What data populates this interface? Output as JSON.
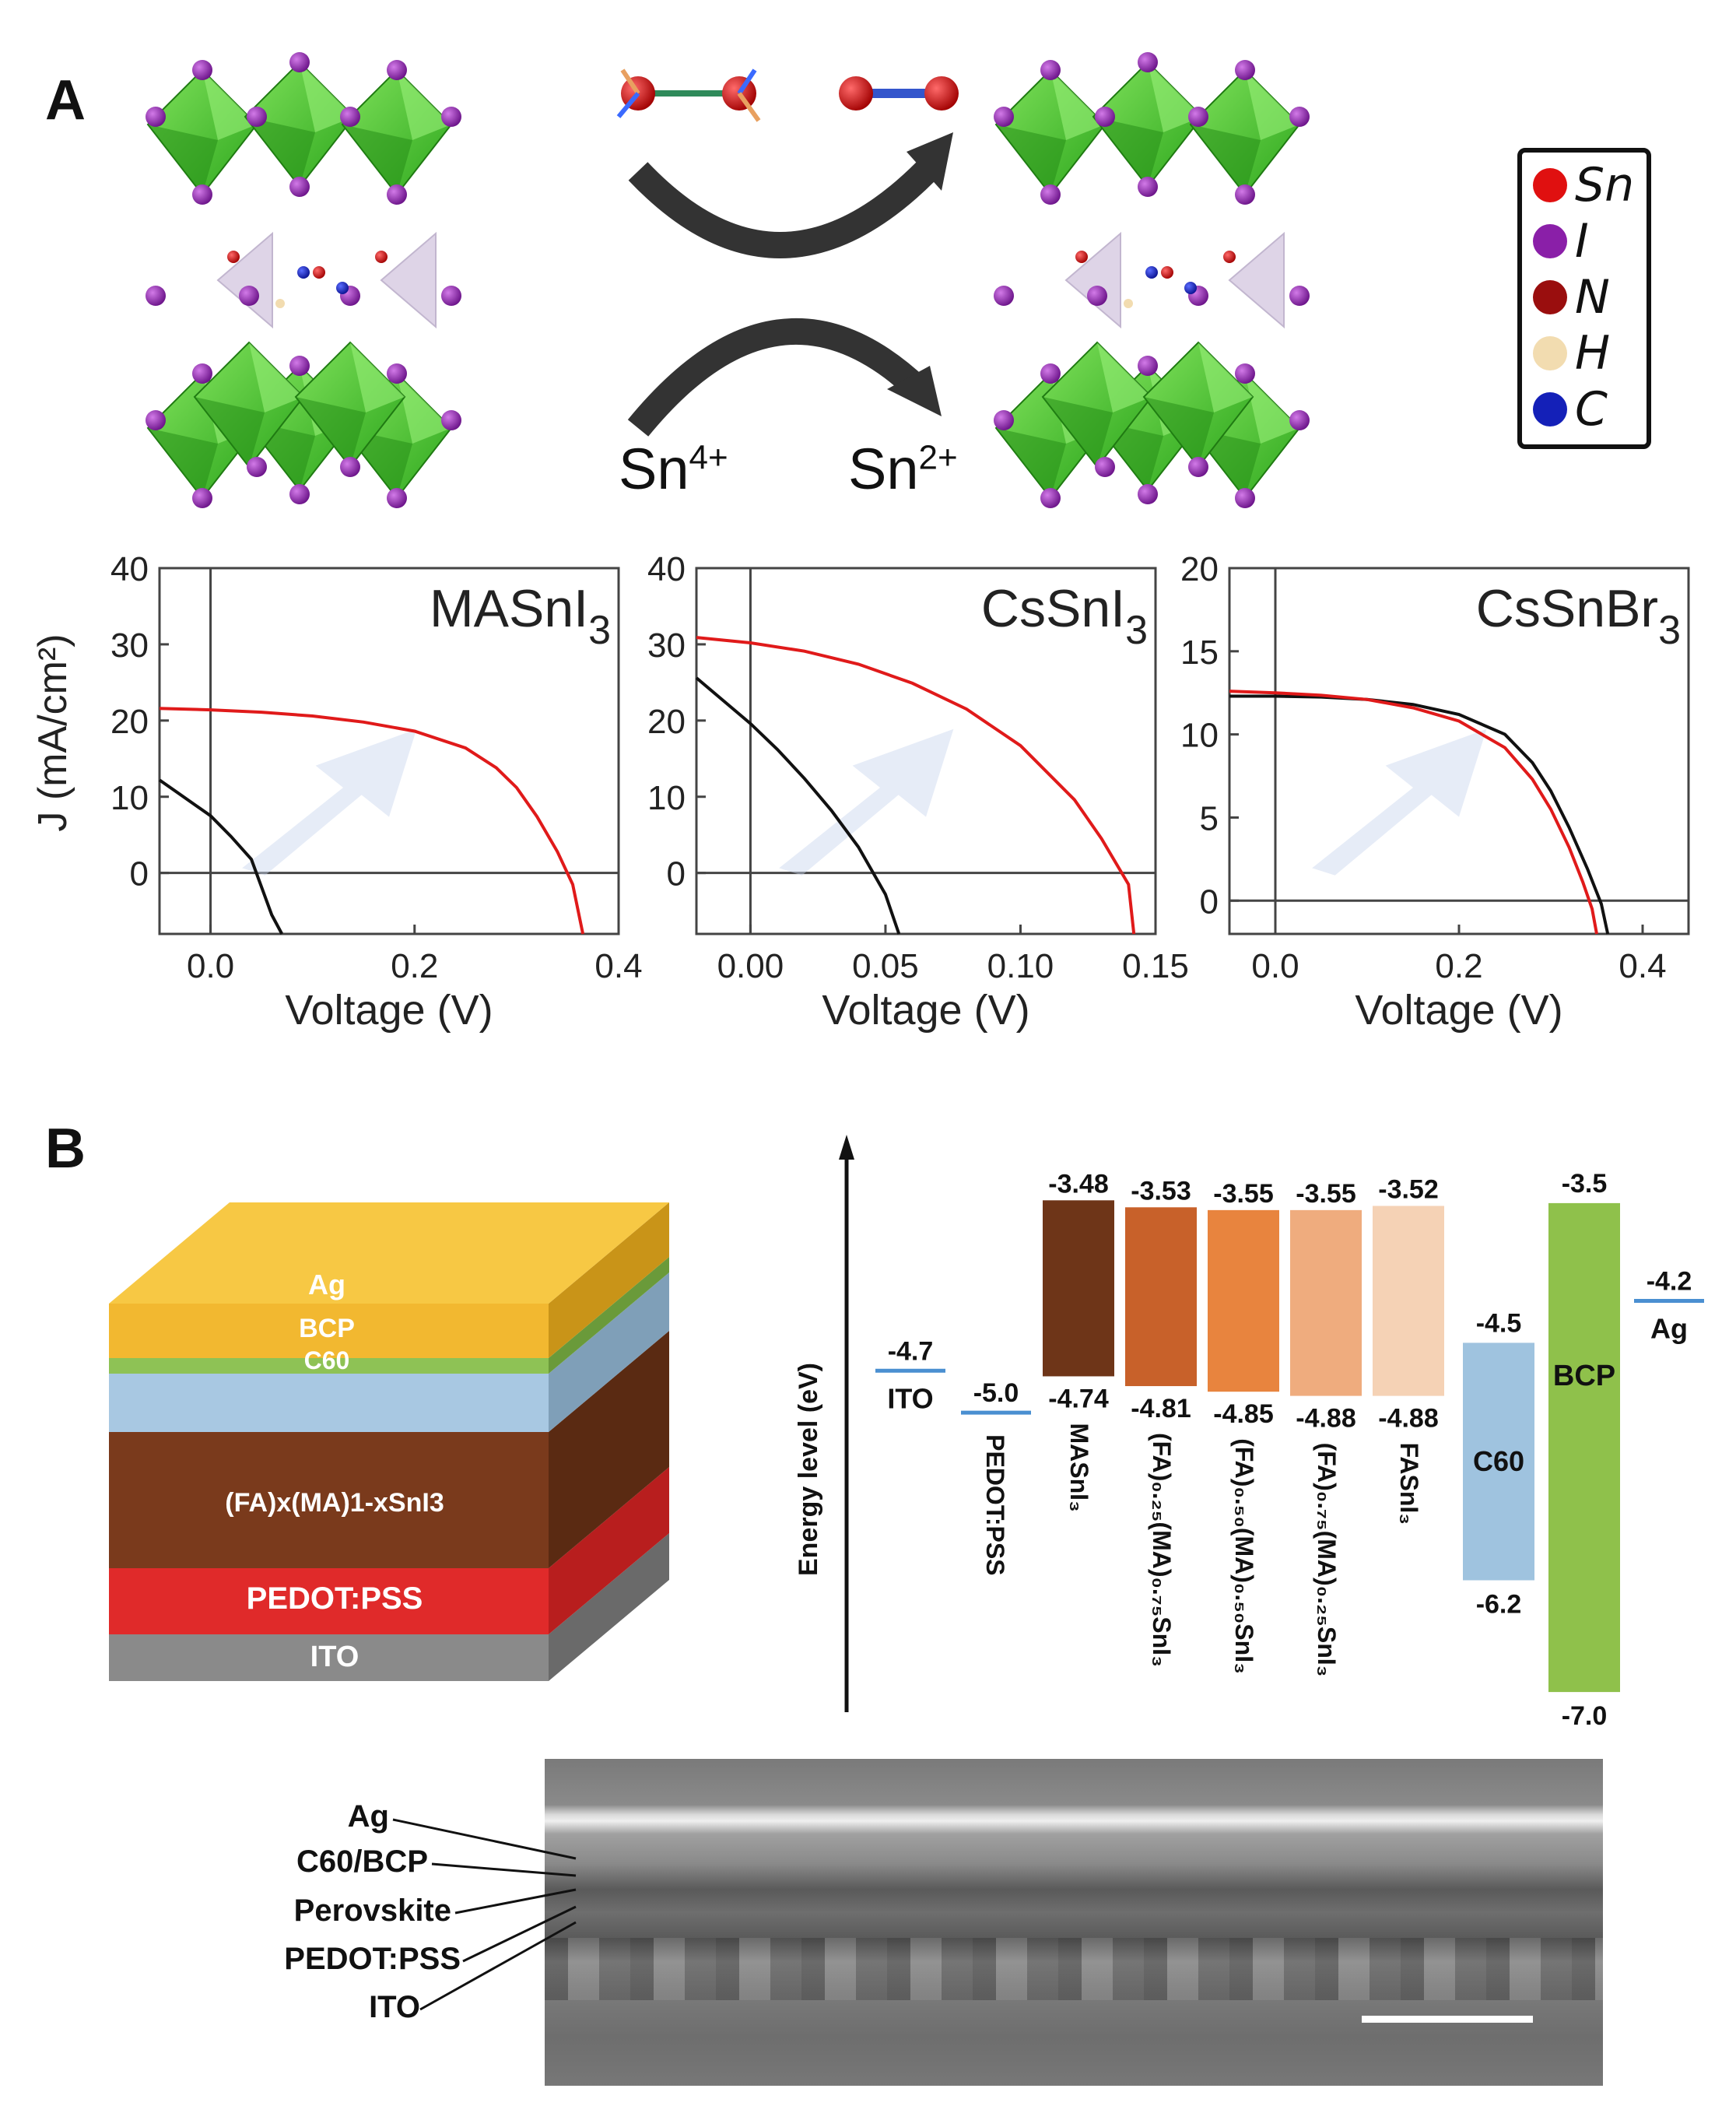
{
  "panel_a": {
    "letter": "A",
    "legend": [
      {
        "symbol": "Sn",
        "color": "#e01010"
      },
      {
        "symbol": "I",
        "color": "#8a1fa8"
      },
      {
        "symbol": "N",
        "color": "#9a0e0e"
      },
      {
        "symbol": "H",
        "color": "#f2dcb0"
      },
      {
        "symbol": "C",
        "color": "#1420b8"
      }
    ],
    "reaction": {
      "left_ion": "Sn",
      "left_charge": "4+",
      "right_ion": "Sn",
      "right_charge": "2+"
    }
  },
  "chart_data": [
    {
      "type": "line",
      "title_main": "MASnI",
      "title_sub": "3",
      "ylabel": "J (mA/cm²)",
      "xlabel": "Voltage (V)",
      "xlim": [
        -0.05,
        0.4
      ],
      "ylim": [
        -8,
        40
      ],
      "xticks": [
        0.0,
        0.2,
        0.4
      ],
      "xtick_labels": [
        "0.0",
        "0.2",
        "0.4"
      ],
      "yticks": [
        0,
        10,
        20,
        30,
        40
      ],
      "ytick_labels": [
        "0",
        "10",
        "20",
        "30",
        "40"
      ],
      "grid": false,
      "series": [
        {
          "color": "#111111",
          "points": [
            [
              -0.05,
              12.2
            ],
            [
              0.0,
              7.5
            ],
            [
              0.02,
              4.8
            ],
            [
              0.04,
              1.8
            ],
            [
              0.06,
              -5.5
            ],
            [
              0.07,
              -8.0
            ]
          ]
        },
        {
          "color": "#e01a1a",
          "points": [
            [
              -0.05,
              21.6
            ],
            [
              0.0,
              21.4
            ],
            [
              0.05,
              21.1
            ],
            [
              0.1,
              20.6
            ],
            [
              0.15,
              19.8
            ],
            [
              0.2,
              18.6
            ],
            [
              0.25,
              16.4
            ],
            [
              0.28,
              13.8
            ],
            [
              0.3,
              11.2
            ],
            [
              0.32,
              7.4
            ],
            [
              0.34,
              2.8
            ],
            [
              0.355,
              -1.5
            ],
            [
              0.365,
              -8.0
            ]
          ]
        }
      ]
    },
    {
      "type": "line",
      "title_main": "CsSnI",
      "title_sub": "3",
      "ylabel": "",
      "xlabel": "Voltage (V)",
      "xlim": [
        -0.02,
        0.15
      ],
      "ylim": [
        -8,
        40
      ],
      "xticks": [
        0.0,
        0.05,
        0.1,
        0.15
      ],
      "xtick_labels": [
        "0.00",
        "0.05",
        "0.10",
        "0.15"
      ],
      "yticks": [
        0,
        10,
        20,
        30,
        40
      ],
      "ytick_labels": [
        "0",
        "10",
        "20",
        "30",
        "40"
      ],
      "grid": false,
      "series": [
        {
          "color": "#111111",
          "points": [
            [
              -0.02,
              25.6
            ],
            [
              -0.01,
              22.6
            ],
            [
              0.0,
              19.6
            ],
            [
              0.01,
              16.2
            ],
            [
              0.02,
              12.4
            ],
            [
              0.03,
              8.2
            ],
            [
              0.04,
              3.4
            ],
            [
              0.05,
              -2.8
            ],
            [
              0.055,
              -8.0
            ]
          ]
        },
        {
          "color": "#e01a1a",
          "points": [
            [
              -0.02,
              30.9
            ],
            [
              0.0,
              30.2
            ],
            [
              0.02,
              29.1
            ],
            [
              0.04,
              27.4
            ],
            [
              0.06,
              24.9
            ],
            [
              0.08,
              21.5
            ],
            [
              0.1,
              16.7
            ],
            [
              0.12,
              9.6
            ],
            [
              0.13,
              4.5
            ],
            [
              0.14,
              -1.5
            ],
            [
              0.142,
              -8.0
            ]
          ]
        }
      ]
    },
    {
      "type": "line",
      "title_main": "CsSnBr",
      "title_sub": "3",
      "ylabel": "",
      "xlabel": "Voltage (V)",
      "xlim": [
        -0.05,
        0.45
      ],
      "ylim": [
        -2,
        20
      ],
      "xticks": [
        0.0,
        0.2,
        0.4
      ],
      "xtick_labels": [
        "0.0",
        "0.2",
        "0.4"
      ],
      "yticks": [
        0,
        5,
        10,
        15,
        20
      ],
      "ytick_labels": [
        "0",
        "5",
        "10",
        "15",
        "20"
      ],
      "grid": false,
      "series": [
        {
          "color": "#111111",
          "points": [
            [
              -0.05,
              12.3
            ],
            [
              0.0,
              12.3
            ],
            [
              0.05,
              12.25
            ],
            [
              0.1,
              12.1
            ],
            [
              0.15,
              11.8
            ],
            [
              0.2,
              11.2
            ],
            [
              0.25,
              10.0
            ],
            [
              0.28,
              8.3
            ],
            [
              0.3,
              6.6
            ],
            [
              0.32,
              4.4
            ],
            [
              0.34,
              1.9
            ],
            [
              0.355,
              -0.2
            ],
            [
              0.362,
              -2.0
            ]
          ]
        },
        {
          "color": "#e01a1a",
          "points": [
            [
              -0.05,
              12.6
            ],
            [
              0.0,
              12.5
            ],
            [
              0.05,
              12.35
            ],
            [
              0.1,
              12.1
            ],
            [
              0.15,
              11.6
            ],
            [
              0.2,
              10.8
            ],
            [
              0.25,
              9.2
            ],
            [
              0.28,
              7.3
            ],
            [
              0.3,
              5.5
            ],
            [
              0.32,
              3.2
            ],
            [
              0.335,
              1.1
            ],
            [
              0.345,
              -0.5
            ],
            [
              0.35,
              -2.0
            ]
          ]
        }
      ]
    }
  ],
  "panel_b": {
    "letter": "B",
    "stack": [
      {
        "label": "Ag"
      },
      {
        "label": "BCP"
      },
      {
        "label": "C60"
      },
      {
        "label": "(FA)x(MA)1-xSnI3"
      },
      {
        "label": "PEDOT:PSS"
      },
      {
        "label": "ITO"
      }
    ],
    "energy": {
      "axis_label": "Energy level (eV)",
      "ito": {
        "value": "-4.7",
        "name": "ITO"
      },
      "pedot": {
        "value": "-5.0",
        "name": "PEDOT:PSS"
      },
      "perovskites": [
        {
          "top": "-3.48",
          "bottom": "-4.74",
          "name": "MASnI₃",
          "color": "#6e3518"
        },
        {
          "top": "-3.53",
          "bottom": "-4.81",
          "name": "(FA)₀.₂₅(MA)₀.₇₅SnI₃",
          "color": "#c8612a"
        },
        {
          "top": "-3.55",
          "bottom": "-4.85",
          "name": "(FA)₀.₅₀(MA)₀.₅₀SnI₃",
          "color": "#e8843e"
        },
        {
          "top": "-3.55",
          "bottom": "-4.88",
          "name": "(FA)₀.₇₅(MA)₀.₂₅SnI₃",
          "color": "#efac7e"
        },
        {
          "top": "-3.52",
          "bottom": "-4.88",
          "name": "FASnI₃",
          "color": "#f5d2b5"
        }
      ],
      "c60": {
        "top": "-4.5",
        "bottom": "-6.2",
        "name": "C60",
        "color": "#9fc3df"
      },
      "bcp": {
        "top": "-3.5",
        "bottom": "-7.0",
        "name": "BCP",
        "color": "#8fc14b"
      },
      "ag": {
        "value": "-4.2",
        "name": "Ag"
      }
    },
    "sem_labels": [
      "Ag",
      "C60/BCP",
      "Perovskite",
      "PEDOT:PSS",
      "ITO"
    ]
  }
}
